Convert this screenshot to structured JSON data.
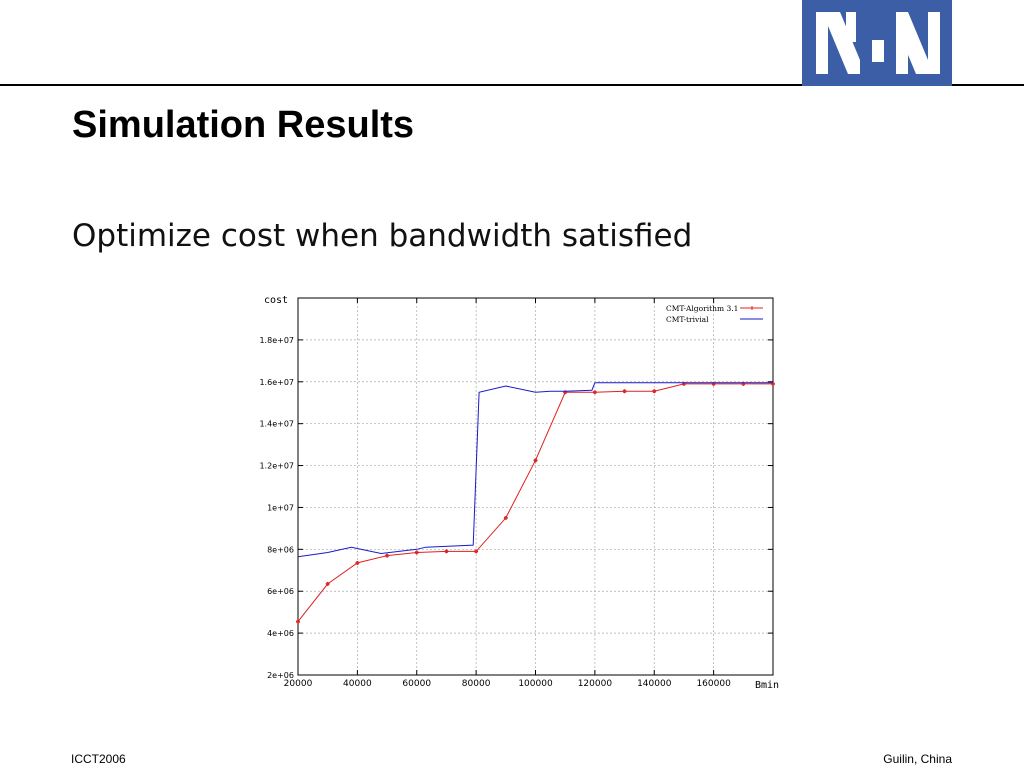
{
  "slide": {
    "title": "Simulation Results",
    "subtitle": "Optimize cost when bandwidth satisfied",
    "footer_left": "ICCT2006",
    "footer_right": "Guilin, China"
  },
  "logo": {
    "icon": "ngn-logo-icon",
    "color": "#3b5ea7"
  },
  "colors": {
    "series1": "#e02020",
    "series2": "#1a1acc",
    "grid": "#aaaaaa"
  },
  "chart_data": {
    "type": "line",
    "title": "",
    "xlabel": "Bmin",
    "ylabel": "cost",
    "xlim": [
      20000,
      180000
    ],
    "ylim": [
      2000000,
      20000000
    ],
    "x_ticks": [
      20000,
      40000,
      60000,
      80000,
      100000,
      120000,
      140000,
      160000
    ],
    "x_tick_labels": [
      "20000",
      "40000",
      "60000",
      "80000",
      "100000",
      "120000",
      "140000",
      "160000"
    ],
    "y_ticks": [
      2000000,
      4000000,
      6000000,
      8000000,
      10000000,
      12000000,
      14000000,
      16000000,
      18000000
    ],
    "y_tick_labels": [
      "2e+06",
      "4e+06",
      "6e+06",
      "8e+06",
      "1e+07",
      "1.2e+07",
      "1.4e+07",
      "1.6e+07",
      "1.8e+07"
    ],
    "grid": true,
    "legend_position": "top-right",
    "series": [
      {
        "name": "CMT-Algorithm 3.1",
        "color": "#e02020",
        "markers": true,
        "x": [
          20000,
          30000,
          40000,
          50000,
          60000,
          70000,
          80000,
          90000,
          100000,
          110000,
          120000,
          130000,
          140000,
          150000,
          160000,
          170000,
          180000
        ],
        "y": [
          4550000,
          6350000,
          7350000,
          7700000,
          7850000,
          7900000,
          7900000,
          9500000,
          12250000,
          15500000,
          15500000,
          15550000,
          15550000,
          15900000,
          15900000,
          15900000,
          15900000
        ]
      },
      {
        "name": "CMT-trivial",
        "color": "#1a1acc",
        "markers": false,
        "x": [
          20000,
          30000,
          38000,
          48000,
          60000,
          63000,
          79000,
          81000,
          90000,
          100000,
          105000,
          110000,
          119000,
          120000,
          130000,
          140000,
          150000,
          160000,
          170000,
          180000
        ],
        "y": [
          7650000,
          7850000,
          8100000,
          7800000,
          8000000,
          8100000,
          8200000,
          15500000,
          15800000,
          15500000,
          15550000,
          15550000,
          15600000,
          15950000,
          15950000,
          15950000,
          15950000,
          15950000,
          15950000,
          15950000
        ]
      }
    ]
  }
}
